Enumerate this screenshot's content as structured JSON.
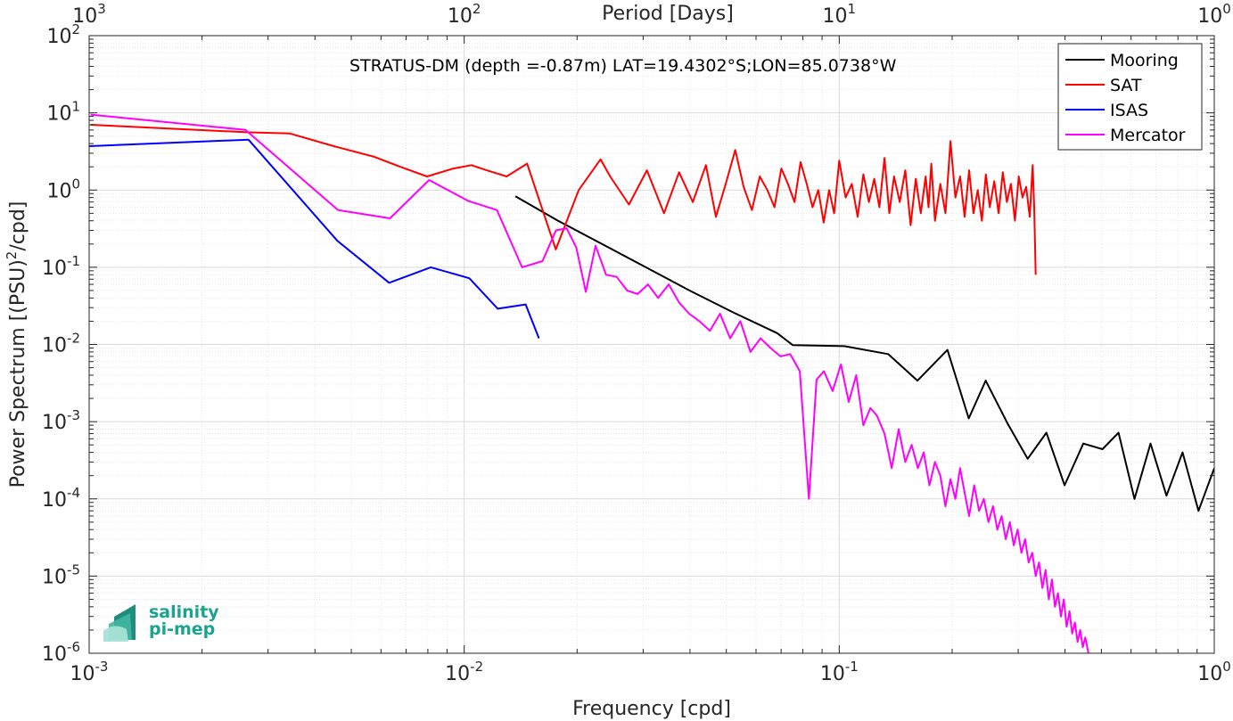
{
  "chart_data": {
    "type": "line",
    "x_scale": "log",
    "y_scale": "log",
    "xlim": [
      0.001,
      1
    ],
    "ylim": [
      1e-06,
      100
    ],
    "grid": true,
    "xlabel": "Frequency [cpd]",
    "ylabel": "Power Spectrum [(PSU)",
    "ylabel_sup": "2",
    "ylabel_tail": "/cpd]",
    "top_xlabel": "Period [Days]",
    "annotation": "STRATUS-DM (depth =-0.87m) LAT=19.4302°S;LON=85.0738°W",
    "legend_position": "top-right",
    "x_ticks": [
      {
        "base": "10",
        "exp": "-3",
        "value": 0.001
      },
      {
        "base": "10",
        "exp": "-2",
        "value": 0.01
      },
      {
        "base": "10",
        "exp": "-1",
        "value": 0.1
      },
      {
        "base": "10",
        "exp": "0",
        "value": 1
      }
    ],
    "top_ticks": [
      {
        "base": "10",
        "exp": "3",
        "freq": 0.001
      },
      {
        "base": "10",
        "exp": "2",
        "freq": 0.01
      },
      {
        "base": "10",
        "exp": "1",
        "freq": 0.1
      },
      {
        "base": "10",
        "exp": "0",
        "freq": 1
      }
    ],
    "y_ticks": [
      {
        "base": "10",
        "exp": "2",
        "value": 100
      },
      {
        "base": "10",
        "exp": "1",
        "value": 10
      },
      {
        "base": "10",
        "exp": "0",
        "value": 1
      },
      {
        "base": "10",
        "exp": "-1",
        "value": 0.1
      },
      {
        "base": "10",
        "exp": "-2",
        "value": 0.01
      },
      {
        "base": "10",
        "exp": "-3",
        "value": 0.001
      },
      {
        "base": "10",
        "exp": "-4",
        "value": 0.0001
      },
      {
        "base": "10",
        "exp": "-5",
        "value": 1e-05
      },
      {
        "base": "10",
        "exp": "-6",
        "value": 1e-06
      }
    ],
    "series": [
      {
        "name": "Mooring",
        "color": "#000000",
        "x": [
          0.0137,
          0.0178,
          0.0233,
          0.0305,
          0.0399,
          0.0522,
          0.0683,
          0.0752,
          0.1032,
          0.135,
          0.1617,
          0.1943,
          0.2215,
          0.2458,
          0.281,
          0.3181,
          0.3567,
          0.399,
          0.4476,
          0.5034,
          0.5554,
          0.6128,
          0.6762,
          0.7458,
          0.8229,
          0.9078,
          1.0
        ],
        "y": [
          0.83,
          0.4,
          0.2,
          0.1,
          0.05,
          0.026,
          0.014,
          0.0098,
          0.0095,
          0.0075,
          0.0034,
          0.0085,
          0.0011,
          0.0034,
          0.00095,
          0.00033,
          0.00072,
          0.00015,
          0.00052,
          0.00044,
          0.00072,
          0.0001,
          0.00052,
          0.00011,
          0.0004,
          7e-05,
          0.00025
        ]
      },
      {
        "name": "SAT",
        "color": "#ff0000",
        "x": [
          0.00101,
          0.00263,
          0.00343,
          0.00449,
          0.00575,
          0.00676,
          0.00796,
          0.00936,
          0.01045,
          0.01148,
          0.01298,
          0.01471,
          0.01755,
          0.0202,
          0.0231,
          0.0245,
          0.0275,
          0.0307,
          0.0341,
          0.0374,
          0.0407,
          0.0441,
          0.0469,
          0.0498,
          0.0528,
          0.0556,
          0.0585,
          0.0614,
          0.0643,
          0.0672,
          0.0701,
          0.073,
          0.076,
          0.0789,
          0.0819,
          0.0849,
          0.0879,
          0.0909,
          0.094,
          0.0969,
          0.1,
          0.104,
          0.108,
          0.112,
          0.116,
          0.12,
          0.124,
          0.128,
          0.132,
          0.136,
          0.14,
          0.145,
          0.15,
          0.155,
          0.16,
          0.165,
          0.17,
          0.173,
          0.176,
          0.18,
          0.186,
          0.192,
          0.198,
          0.204,
          0.21,
          0.216,
          0.222,
          0.228,
          0.234,
          0.24,
          0.246,
          0.252,
          0.259,
          0.266,
          0.273,
          0.28,
          0.287,
          0.294,
          0.301,
          0.308,
          0.315,
          0.322,
          0.328,
          0.331,
          0.334
        ],
        "y": [
          7.0,
          5.6,
          5.4,
          3.7,
          2.7,
          2.0,
          1.5,
          1.9,
          2.1,
          1.8,
          1.5,
          2.2,
          0.17,
          1.0,
          2.5,
          1.5,
          0.65,
          1.8,
          0.5,
          1.7,
          0.7,
          2.1,
          0.45,
          1.2,
          3.3,
          1.1,
          0.55,
          1.5,
          1.0,
          0.6,
          1.9,
          1.2,
          0.7,
          2.3,
          1.2,
          0.6,
          1.0,
          0.38,
          1.0,
          0.5,
          2.4,
          0.8,
          1.2,
          0.45,
          1.6,
          0.7,
          1.4,
          0.6,
          2.6,
          0.5,
          1.5,
          0.7,
          1.8,
          0.35,
          1.4,
          0.5,
          1.5,
          0.6,
          2.2,
          0.4,
          1.2,
          0.5,
          4.3,
          0.8,
          1.5,
          0.45,
          1.8,
          0.5,
          1.0,
          0.4,
          1.6,
          0.6,
          1.3,
          0.5,
          1.7,
          0.7,
          1.2,
          0.4,
          1.5,
          0.8,
          1.1,
          0.45,
          2.1,
          0.6,
          0.08
        ]
      },
      {
        "name": "ISAS",
        "color": "#0000ff",
        "x": [
          0.001,
          0.00266,
          0.00459,
          0.00631,
          0.00815,
          0.01032,
          0.01229,
          0.01458,
          0.01582
        ],
        "y": [
          3.7,
          4.5,
          0.22,
          0.063,
          0.1,
          0.072,
          0.029,
          0.033,
          0.012
        ]
      },
      {
        "name": "Mercator",
        "color": "#ff00ff",
        "x": [
          0.00101,
          0.00261,
          0.00461,
          0.00634,
          0.00806,
          0.01027,
          0.01223,
          0.01427,
          0.01617,
          0.01757,
          0.01876,
          0.0199,
          0.0211,
          0.0224,
          0.0239,
          0.0255,
          0.0272,
          0.029,
          0.0309,
          0.0329,
          0.0351,
          0.0374,
          0.0398,
          0.0424,
          0.0452,
          0.0481,
          0.0512,
          0.0545,
          0.058,
          0.0617,
          0.0656,
          0.0697,
          0.074,
          0.0785,
          0.083,
          0.087,
          0.091,
          0.096,
          0.101,
          0.106,
          0.111,
          0.116,
          0.121,
          0.126,
          0.132,
          0.138,
          0.144,
          0.15,
          0.156,
          0.162,
          0.168,
          0.174,
          0.18,
          0.186,
          0.192,
          0.198,
          0.204,
          0.21,
          0.216,
          0.222,
          0.229,
          0.236,
          0.243,
          0.25,
          0.257,
          0.264,
          0.271,
          0.278,
          0.285,
          0.292,
          0.299,
          0.306,
          0.313,
          0.32,
          0.327,
          0.334,
          0.341,
          0.348,
          0.355,
          0.362,
          0.369,
          0.376,
          0.383,
          0.39,
          0.397,
          0.404,
          0.411,
          0.418,
          0.425,
          0.432,
          0.439,
          0.446,
          0.453,
          0.462
        ],
        "y": [
          9.5,
          6.0,
          0.55,
          0.43,
          1.35,
          0.72,
          0.55,
          0.1,
          0.12,
          0.3,
          0.32,
          0.18,
          0.048,
          0.19,
          0.08,
          0.075,
          0.05,
          0.045,
          0.06,
          0.04,
          0.06,
          0.035,
          0.025,
          0.02,
          0.015,
          0.025,
          0.012,
          0.02,
          0.008,
          0.012,
          0.009,
          0.007,
          0.0075,
          0.0045,
          0.0001,
          0.0035,
          0.0045,
          0.0025,
          0.0055,
          0.0018,
          0.004,
          0.0009,
          0.0015,
          0.0012,
          0.0007,
          0.00025,
          0.0008,
          0.0003,
          0.0005,
          0.00025,
          0.0004,
          0.00015,
          0.0003,
          0.0002,
          8e-05,
          0.00018,
          0.0001,
          0.00025,
          0.00012,
          6e-05,
          0.00015,
          7e-05,
          0.0001,
          5e-05,
          8e-05,
          4e-05,
          6e-05,
          3e-05,
          5e-05,
          2.5e-05,
          4e-05,
          2e-05,
          3e-05,
          1.5e-05,
          2e-05,
          1e-05,
          1.5e-05,
          7e-06,
          1.2e-05,
          5e-06,
          9e-06,
          4e-06,
          6e-06,
          3e-06,
          5e-06,
          2.2e-06,
          3.5e-06,
          1.8e-06,
          2.5e-06,
          1.4e-06,
          2e-06,
          1.2e-06,
          1.6e-06,
          1e-06
        ]
      }
    ]
  },
  "logo": {
    "line1": "salinity",
    "line2": "pi-mep",
    "color": "#1aa38f"
  }
}
